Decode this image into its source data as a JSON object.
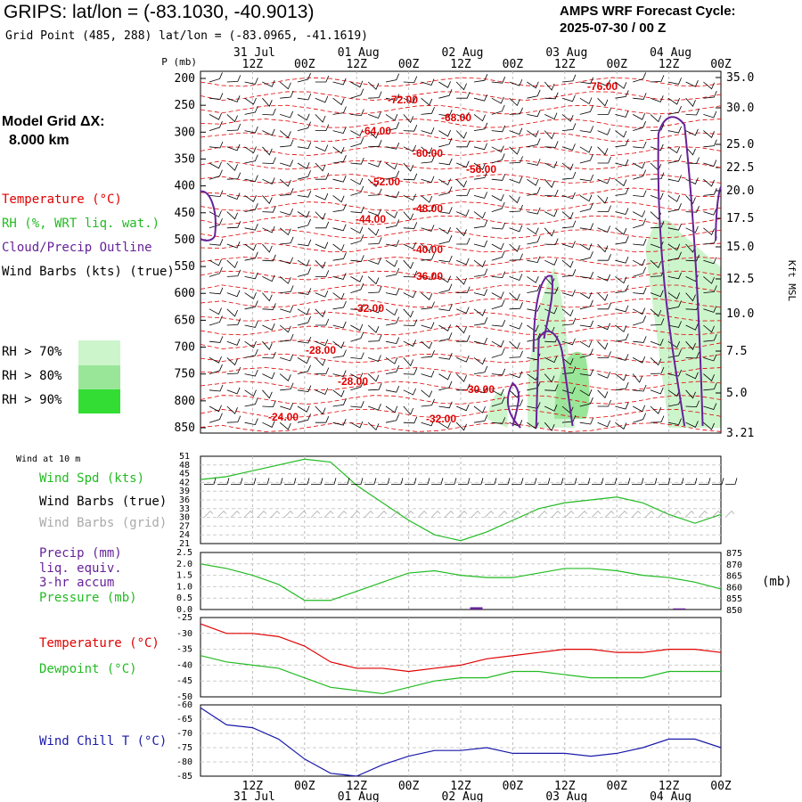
{
  "header": {
    "title": "GRIPS:  lat/lon = (-83.1030, -40.9013)",
    "subtitle": "Grid Point (485, 288) lat/lon = (-83.0965, -41.1619)",
    "cycle_line1": "AMPS WRF Forecast Cycle:",
    "cycle_line2": "2025-07-30 / 00  Z"
  },
  "model_grid": {
    "line1": "Model Grid ΔX:",
    "line2": "8.000 km"
  },
  "legend": {
    "temperature": "Temperature (°C)",
    "rh": "RH (%, WRT liq. wat.)",
    "cloud": "Cloud/Precip Outline",
    "wind": "Wind Barbs (kts) (true)"
  },
  "rh_key": [
    {
      "label": "RH > 70%",
      "color": "#ccf5cc"
    },
    {
      "label": "RH > 80%",
      "color": "#99e699"
    },
    {
      "label": "RH > 90%",
      "color": "#33dd33"
    }
  ],
  "panel_labels": {
    "wind10m": "Wind at 10 m",
    "wind_spd": "Wind Spd (kts)",
    "barbs_true": "Wind Barbs (true)",
    "barbs_grid": "Wind Barbs (grid)",
    "precip1": "Precip (mm)",
    "precip2": "liq. equiv.",
    "precip3": "3-hr accum",
    "pressure": "Pressure (mb)",
    "pressure_unit": "(mb)",
    "temperature": "Temperature (°C)",
    "dewpoint": "Dewpoint (°C)",
    "windchill": "Wind Chill T (°C)"
  },
  "colors": {
    "temperature": "#e00000",
    "rh_text": "#22bb22",
    "cloud": "#662299",
    "wind_speed": "#22bb22",
    "barbs_grid": "#aaaaaa",
    "pressure": "#22bb22",
    "precip": "#662299",
    "dewpoint": "#22bb22",
    "windchill": "#1a1aaa"
  },
  "chart_data": [
    {
      "type": "cross-section",
      "title": "",
      "ylabel": "P (mb)",
      "ylabel_right": "Kft MSL",
      "y_ticks": [
        "200",
        "250",
        "300",
        "350",
        "400",
        "450",
        "500",
        "550",
        "600",
        "650",
        "700",
        "750",
        "800",
        "850"
      ],
      "y_right_ticks": [
        "35.0",
        "30.0",
        "25.0",
        "22.5",
        "20.0",
        "17.5",
        "15.0",
        "12.5",
        "10.0",
        "7.5",
        "5.0",
        "3.21"
      ],
      "x_top_ticks": [
        "12Z",
        "00Z",
        "12Z",
        "00Z",
        "12Z",
        "00Z",
        "12Z",
        "00Z",
        "12Z",
        "00Z"
      ],
      "x_top_dates": [
        "31 Jul",
        "01 Aug",
        "02 Aug",
        "03 Aug",
        "04 Aug"
      ],
      "temperature_labels": [
        "-72.00",
        "-76.00",
        "-68.00",
        "-64.00",
        "-60.00",
        "-56.00",
        "-52.00",
        "-48.00",
        "-44.00",
        "-40.00",
        "-36.00",
        "-32.00",
        "-28.00",
        "-30.00",
        "-28.00",
        "-24.00",
        "-32.00"
      ]
    },
    {
      "type": "line",
      "title": "",
      "y_ticks": [
        "51",
        "48",
        "45",
        "42",
        "39",
        "36",
        "33",
        "30",
        "27",
        "24",
        "21"
      ],
      "ylim": [
        21,
        51
      ],
      "series": [
        {
          "name": "Wind Spd (kts)",
          "x": [
            0,
            1,
            2,
            3,
            4,
            5,
            6,
            7,
            8,
            9,
            10,
            11,
            12,
            13,
            14,
            15,
            16,
            17,
            18,
            19,
            20
          ],
          "values": [
            43,
            44,
            46,
            48,
            50,
            49,
            41,
            35,
            29,
            24,
            22,
            25,
            29,
            33,
            35,
            36,
            37,
            35,
            31,
            28,
            31
          ]
        }
      ]
    },
    {
      "type": "line",
      "title": "",
      "y_ticks": [
        "2.5",
        "2.0",
        "1.5",
        "1.0",
        "0.5",
        "0.0"
      ],
      "y_right_ticks": [
        "875",
        "870",
        "865",
        "860",
        "855",
        "850"
      ],
      "ylim": [
        0,
        2.5
      ],
      "ylim_right": [
        850,
        875
      ],
      "series": [
        {
          "name": "Pressure (mb)",
          "x": [
            0,
            1,
            2,
            3,
            4,
            5,
            6,
            7,
            8,
            9,
            10,
            11,
            12,
            13,
            14,
            15,
            16,
            17,
            18,
            19,
            20
          ],
          "values": [
            870,
            868,
            865,
            861,
            854,
            854,
            858,
            862,
            866,
            867,
            865,
            864,
            864,
            866,
            868,
            868,
            867,
            865,
            864,
            862,
            859
          ]
        }
      ],
      "precip_bars": [
        {
          "x": 10.6,
          "value": 0.1
        },
        {
          "x": 18.4,
          "value": 0.05
        }
      ]
    },
    {
      "type": "line",
      "title": "",
      "y_ticks": [
        "-25",
        "-30",
        "-35",
        "-40",
        "-45",
        "-50"
      ],
      "ylim": [
        -50,
        -25
      ],
      "series": [
        {
          "name": "Temperature (°C)",
          "x": [
            0,
            1,
            2,
            3,
            4,
            5,
            6,
            7,
            8,
            9,
            10,
            11,
            12,
            13,
            14,
            15,
            16,
            17,
            18,
            19,
            20
          ],
          "values": [
            -27,
            -30,
            -30,
            -31,
            -34,
            -39,
            -41,
            -41,
            -42,
            -41,
            -40,
            -38,
            -37,
            -36,
            -35,
            -35,
            -36,
            -36,
            -35,
            -35,
            -36
          ]
        },
        {
          "name": "Dewpoint (°C)",
          "x": [
            0,
            1,
            2,
            3,
            4,
            5,
            6,
            7,
            8,
            9,
            10,
            11,
            12,
            13,
            14,
            15,
            16,
            17,
            18,
            19,
            20
          ],
          "values": [
            -37,
            -39,
            -40,
            -41,
            -44,
            -47,
            -48,
            -49,
            -47,
            -45,
            -44,
            -44,
            -42,
            -42,
            -43,
            -44,
            -44,
            -44,
            -42,
            -42,
            -42
          ]
        }
      ]
    },
    {
      "type": "line",
      "title": "",
      "y_ticks": [
        "-60",
        "-65",
        "-70",
        "-75",
        "-80",
        "-85"
      ],
      "x_bottom_ticks": [
        "12Z",
        "00Z",
        "12Z",
        "00Z",
        "12Z",
        "00Z",
        "12Z",
        "00Z",
        "12Z",
        "00Z"
      ],
      "x_bottom_dates": [
        "31 Jul",
        "01 Aug",
        "02 Aug",
        "03 Aug",
        "04 Aug"
      ],
      "ylim": [
        -85,
        -60
      ],
      "series": [
        {
          "name": "Wind Chill T (°C)",
          "x": [
            0,
            1,
            2,
            3,
            4,
            5,
            6,
            7,
            8,
            9,
            10,
            11,
            12,
            13,
            14,
            15,
            16,
            17,
            18,
            19,
            20
          ],
          "values": [
            -61,
            -67,
            -68,
            -72,
            -79,
            -84,
            -85,
            -81,
            -78,
            -76,
            -76,
            -75,
            -77,
            -77,
            -77,
            -78,
            -77,
            -75,
            -72,
            -72,
            -75
          ]
        }
      ]
    }
  ]
}
